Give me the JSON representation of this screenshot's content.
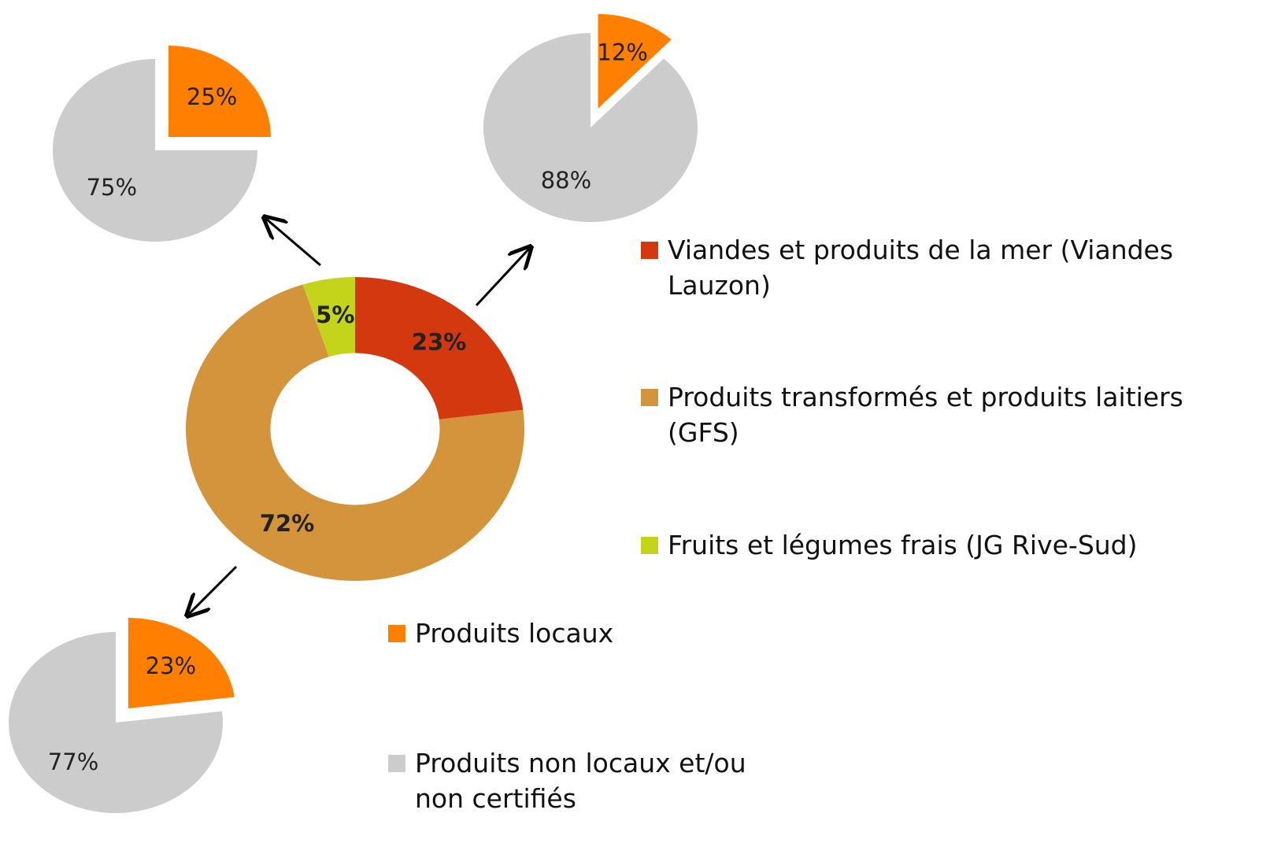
{
  "chart_data": [
    {
      "type": "donut",
      "categories": [
        "Viandes et produits de la mer (Viandes Lauzon)",
        "Produits transformés et produits laitiers (GFS)",
        "Fruits et légumes frais (JG Rive-Sud)"
      ],
      "values": [
        23,
        72,
        5
      ],
      "value_labels": [
        "23%",
        "72%",
        "5%"
      ],
      "colors": [
        "#d4380f",
        "#d4943c",
        "#c3d41a"
      ]
    },
    {
      "type": "pie",
      "categories": [
        "Produits locaux",
        "Produits non locaux et/ou non certifiés"
      ],
      "values": [
        25,
        75
      ],
      "value_labels": [
        "25%",
        "75%"
      ],
      "colors": [
        "#ff7f00",
        "#cccccc"
      ]
    },
    {
      "type": "pie",
      "values": [
        12,
        88
      ],
      "value_labels": [
        "12%",
        "88%"
      ],
      "colors": [
        "#ff7f00",
        "#cccccc"
      ]
    },
    {
      "type": "pie",
      "values": [
        23,
        77
      ],
      "value_labels": [
        "23%",
        "77%"
      ],
      "colors": [
        "#ff7f00",
        "#cccccc"
      ]
    }
  ]
}
